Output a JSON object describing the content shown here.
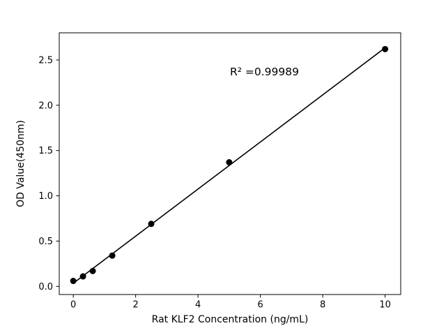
{
  "chart_data": {
    "type": "scatter",
    "x": [
      0,
      0.3125,
      0.625,
      1.25,
      2.5,
      5,
      10
    ],
    "y": [
      0.06,
      0.11,
      0.17,
      0.34,
      0.69,
      1.37,
      2.62
    ],
    "fit_line": "linear-regression",
    "annotation": "R² =0.99989",
    "xlabel": "Rat KLF2 Concentration (ng/mL)",
    "ylabel": "OD Value(450nm)",
    "xticks": [
      0,
      2,
      4,
      6,
      8,
      10
    ],
    "yticks": [
      0.0,
      0.5,
      1.0,
      1.5,
      2.0,
      2.5
    ],
    "xlim": [
      -0.45,
      10.5
    ],
    "ylim": [
      -0.09,
      2.8
    ],
    "marker_color": "#000000",
    "line_color": "#000000",
    "grid": false,
    "legend": "none"
  }
}
